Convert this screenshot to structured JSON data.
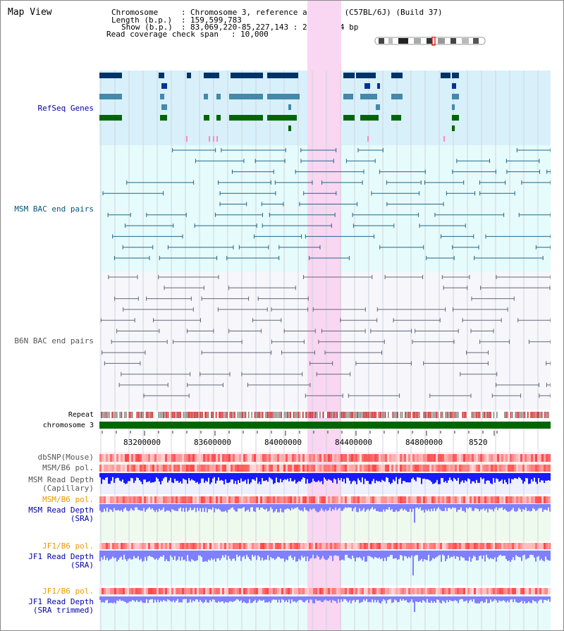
{
  "title": "Map View",
  "header": {
    "chromosome_label": "Chromosome",
    "chromosome_value": "Chromosome 3, reference assembly (C57BL/6J) (Build 37)",
    "length_label": "Length (b.p.)",
    "length_value": "159,599,783",
    "show_label": "Show (b.p.)",
    "show_value": "83,069,220-85,227,143 : 2,157,924 bp",
    "coverage_label": "Read coverage check span",
    "coverage_value": "10,000"
  },
  "tracks": {
    "refseq": "RefSeq Genes",
    "msm_bac": "MSM BAC end pairs",
    "b6n_bac": "B6N BAC end pairs",
    "repeat": "Repeat",
    "chromosome": "chromosome 3",
    "dbsnp": "dbSNP(Mouse)",
    "msm_b6_pol": "MSM/B6 pol.",
    "msm_depth_cap_1": "MSM Read Depth",
    "msm_depth_cap_2": "(Capillary)",
    "msm_b6_pol2": "MSM/B6 pol.",
    "msm_depth_sra_1": "MSM Read Depth",
    "msm_depth_sra_2": "(SRA)",
    "jf1_b6_pol": "JF1/B6 pol.",
    "jf1_depth_sra_1": "JF1 Read Depth",
    "jf1_depth_sra_2": "(SRA)",
    "jf1_b6_pol2": "JF1/B6 pol.",
    "jf1_depth_trim_1": "JF1 Read Depth",
    "jf1_depth_trim_2": "(SRA trimmed)"
  },
  "axis": {
    "ticks": [
      "83200000",
      "83600000",
      "84000000",
      "84400000",
      "84800000",
      "8520"
    ]
  },
  "colors": {
    "refseq_bg": "#d8f0fa",
    "msm_bg": "#e6fbfb",
    "b6n_bg": "#f6f6fb",
    "highlight": "#f9d6f1",
    "chromosome_bar": "#006600",
    "depth_blue": "#1a1aff",
    "depth_light": "#7f7fff",
    "pol_red": "#ff3333",
    "label_blue": "#0000aa",
    "label_teal": "#005577",
    "label_orange": "#ee9900",
    "label_gray": "#555555"
  }
}
